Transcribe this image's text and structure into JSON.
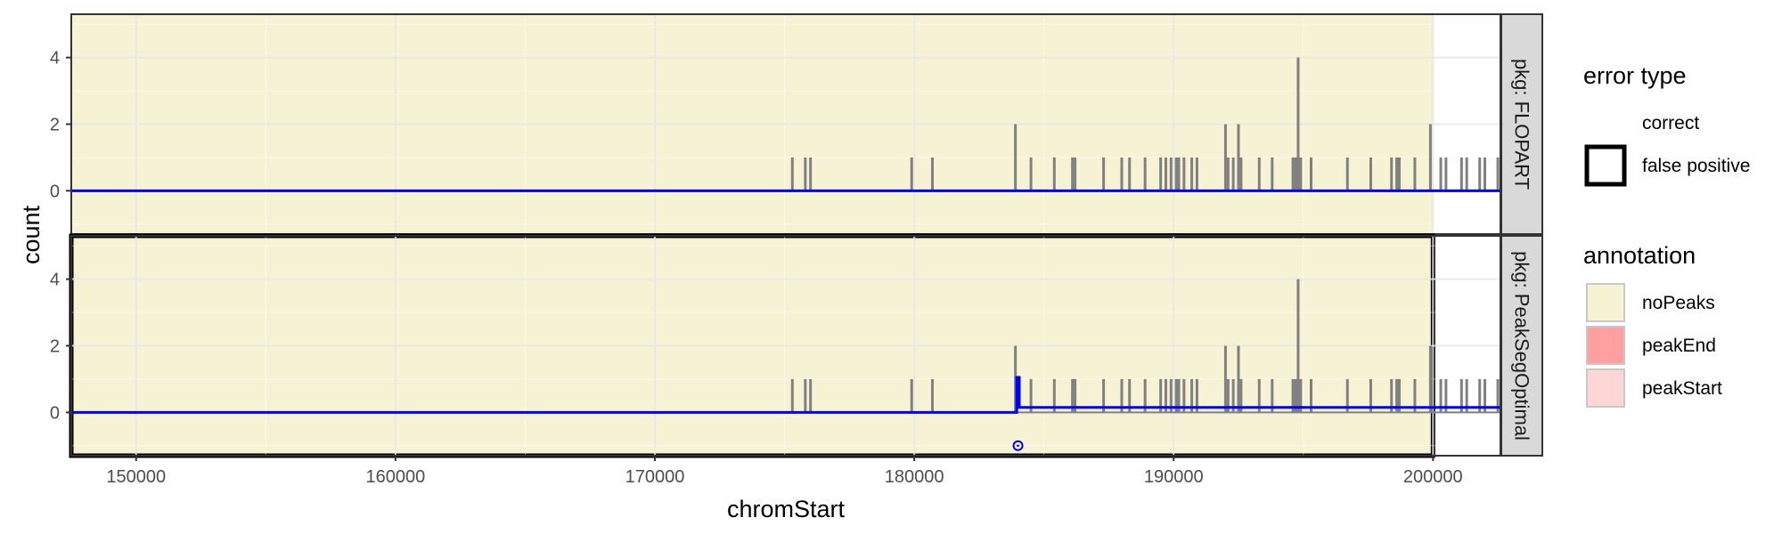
{
  "chart_data": {
    "type": "bar",
    "xlabel": "chromStart",
    "ylabel": "count",
    "xlim": [
      147500,
      202600
    ],
    "ylim": [
      -1.3,
      5.3
    ],
    "x_ticks": [
      150000,
      160000,
      170000,
      180000,
      190000,
      200000
    ],
    "y_ticks": [
      0,
      2,
      4
    ],
    "grid": true,
    "colors": {
      "coverage": "#808080",
      "segments": "#0000ff",
      "noPeaks": "#f6f3d5",
      "peakEnd": "#ff9f9f",
      "peakStart": "#ffd6d6",
      "panel_border": "#333333",
      "strip_fill": "#d9d9d9"
    },
    "coverage": [
      [
        175300,
        1
      ],
      [
        175800,
        1
      ],
      [
        176000,
        1
      ],
      [
        179900,
        1
      ],
      [
        180700,
        1
      ],
      [
        183900,
        2
      ],
      [
        184500,
        1
      ],
      [
        185400,
        1
      ],
      [
        186100,
        1
      ],
      [
        186200,
        1
      ],
      [
        187300,
        1
      ],
      [
        188000,
        1
      ],
      [
        188300,
        1
      ],
      [
        188900,
        1
      ],
      [
        189500,
        1
      ],
      [
        189700,
        1
      ],
      [
        189900,
        1
      ],
      [
        190100,
        1
      ],
      [
        190200,
        1
      ],
      [
        190400,
        1
      ],
      [
        190700,
        1
      ],
      [
        190900,
        1
      ],
      [
        192000,
        2
      ],
      [
        192100,
        1
      ],
      [
        192300,
        1
      ],
      [
        192500,
        2
      ],
      [
        192600,
        1
      ],
      [
        193300,
        1
      ],
      [
        193800,
        1
      ],
      [
        194600,
        1
      ],
      [
        194700,
        1
      ],
      [
        194800,
        4
      ],
      [
        194900,
        1
      ],
      [
        195300,
        1
      ],
      [
        196700,
        1
      ],
      [
        197600,
        1
      ],
      [
        198400,
        1
      ],
      [
        198600,
        1
      ],
      [
        198700,
        1
      ],
      [
        199300,
        1
      ],
      [
        199900,
        2
      ],
      [
        200300,
        1
      ],
      [
        200500,
        1
      ],
      [
        201100,
        1
      ],
      [
        201300,
        1
      ],
      [
        201800,
        1
      ],
      [
        202000,
        1
      ],
      [
        202500,
        1
      ]
    ],
    "panels": [
      {
        "strip_label": "pkg: FLOPART",
        "annotations": [
          {
            "label": "noPeaks",
            "start": 147500,
            "end": 200000,
            "error": "correct"
          }
        ],
        "segments": [
          {
            "start": 147500,
            "end": 202600,
            "mean": 0.0
          }
        ],
        "peaks": []
      },
      {
        "strip_label": "pkg: PeakSegOptimal",
        "annotations": [
          {
            "label": "noPeaks",
            "start": 147500,
            "end": 200000,
            "error": "false positive"
          }
        ],
        "segments": [
          {
            "start": 147500,
            "end": 183950,
            "mean": 0.0
          },
          {
            "start": 183950,
            "end": 184050,
            "mean": 1.05
          },
          {
            "start": 184050,
            "end": 202600,
            "mean": 0.15
          }
        ],
        "peaks": [
          {
            "start": 183950,
            "end": 184050,
            "y": -1.0
          }
        ]
      }
    ],
    "legend": {
      "placement": "right",
      "groups": [
        {
          "title": "error type",
          "entries": [
            "correct",
            "false positive"
          ]
        },
        {
          "title": "annotation",
          "entries": [
            "noPeaks",
            "peakEnd",
            "peakStart"
          ]
        }
      ]
    }
  }
}
